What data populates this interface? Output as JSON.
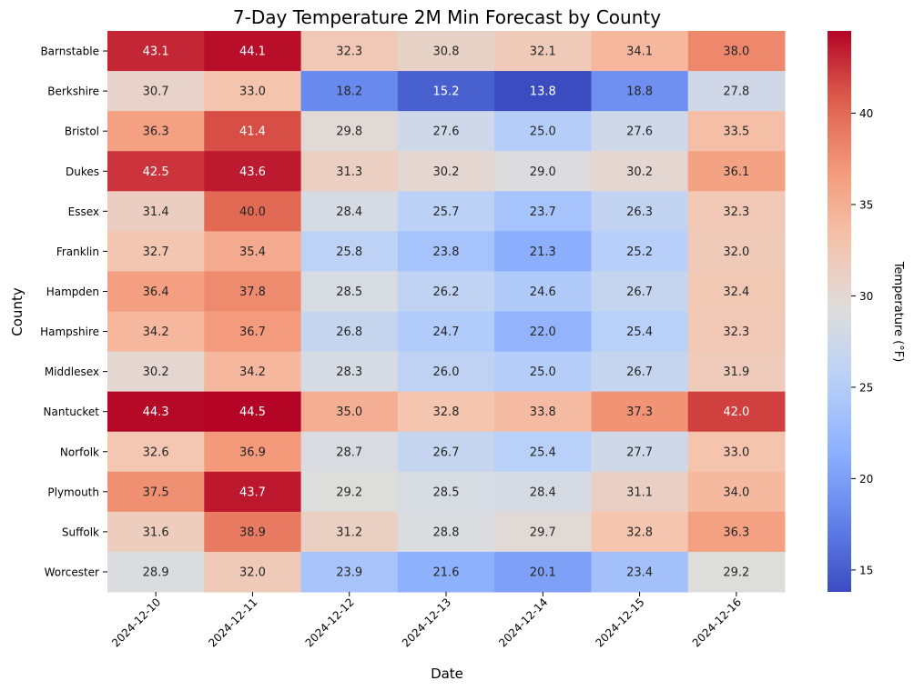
{
  "chart_data": {
    "type": "heatmap",
    "title": "7-Day Temperature 2M Min Forecast by County",
    "xlabel": "Date",
    "ylabel": "County",
    "colorbar_label": "Temperature (°F)",
    "colormap": "coolwarm",
    "vmin": 13.8,
    "vmax": 44.5,
    "colorbar_ticks": [
      15,
      20,
      25,
      30,
      35,
      40
    ],
    "x_categories": [
      "2024-12-10",
      "2024-12-11",
      "2024-12-12",
      "2024-12-13",
      "2024-12-14",
      "2024-12-15",
      "2024-12-16"
    ],
    "y_categories": [
      "Barnstable",
      "Berkshire",
      "Bristol",
      "Dukes",
      "Essex",
      "Franklin",
      "Hampden",
      "Hampshire",
      "Middlesex",
      "Nantucket",
      "Norfolk",
      "Plymouth",
      "Suffolk",
      "Worcester"
    ],
    "values": [
      [
        43.1,
        44.1,
        32.3,
        30.8,
        32.1,
        34.1,
        38.0
      ],
      [
        30.7,
        33.0,
        18.2,
        15.2,
        13.8,
        18.8,
        27.8
      ],
      [
        36.3,
        41.4,
        29.8,
        27.6,
        25.0,
        27.6,
        33.5
      ],
      [
        42.5,
        43.6,
        31.3,
        30.2,
        29.0,
        30.2,
        36.1
      ],
      [
        31.4,
        40.0,
        28.4,
        25.7,
        23.7,
        26.3,
        32.3
      ],
      [
        32.7,
        35.4,
        25.8,
        23.8,
        21.3,
        25.2,
        32.0
      ],
      [
        36.4,
        37.8,
        28.5,
        26.2,
        24.6,
        26.7,
        32.4
      ],
      [
        34.2,
        36.7,
        26.8,
        24.7,
        22.0,
        25.4,
        32.3
      ],
      [
        30.2,
        34.2,
        28.3,
        26.0,
        25.0,
        26.7,
        31.9
      ],
      [
        44.3,
        44.5,
        35.0,
        32.8,
        33.8,
        37.3,
        42.0
      ],
      [
        32.6,
        36.9,
        28.7,
        26.7,
        25.4,
        27.7,
        33.0
      ],
      [
        37.5,
        43.7,
        29.2,
        28.5,
        28.4,
        31.1,
        34.0
      ],
      [
        31.6,
        38.9,
        31.2,
        28.8,
        29.7,
        32.8,
        36.3
      ],
      [
        28.9,
        32.0,
        23.9,
        21.6,
        20.1,
        23.4,
        29.2
      ]
    ]
  }
}
